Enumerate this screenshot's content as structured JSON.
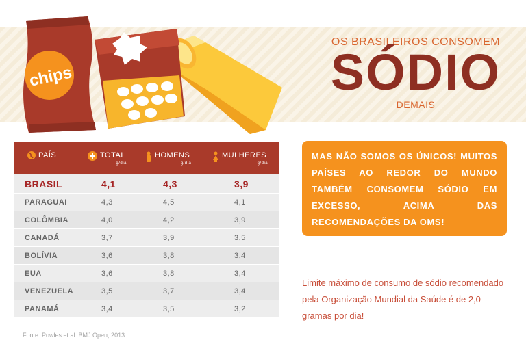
{
  "hero": {
    "top_line": "OS BRASILEIROS CONSOMEM",
    "big_word": "SÓDIO",
    "bottom_line": "DEMAIS"
  },
  "illustration": {
    "bag_label": "chips",
    "icons": [
      "chips-bag-icon",
      "cracker-box-icon",
      "cheese-stick-icon"
    ],
    "colors": {
      "bag": "#a93a2a",
      "box": "#a93a2a",
      "stick": "#f7b731",
      "label_circle": "#f5921e"
    }
  },
  "table": {
    "headers": {
      "pais": "PAÍS",
      "total": "TOTAL",
      "homens": "HOMENS",
      "mulheres": "MULHERES",
      "unit": "g/dia"
    },
    "rows": [
      {
        "name": "BRASIL",
        "total": "4,1",
        "homens": "4,3",
        "mulheres": "3,9"
      },
      {
        "name": "PARAGUAI",
        "total": "4,3",
        "homens": "4,5",
        "mulheres": "4,1"
      },
      {
        "name": "COLÔMBIA",
        "total": "4,0",
        "homens": "4,2",
        "mulheres": "3,9"
      },
      {
        "name": "CANADÁ",
        "total": "3,7",
        "homens": "3,9",
        "mulheres": "3,5"
      },
      {
        "name": "BOLÍVIA",
        "total": "3,6",
        "homens": "3,8",
        "mulheres": "3,4"
      },
      {
        "name": "EUA",
        "total": "3,6",
        "homens": "3,8",
        "mulheres": "3,4"
      },
      {
        "name": "VENEZUELA",
        "total": "3,5",
        "homens": "3,7",
        "mulheres": "3,4"
      },
      {
        "name": "PANAMÁ",
        "total": "3,4",
        "homens": "3,5",
        "mulheres": "3,2"
      }
    ]
  },
  "source": "Fonte: Powles et al. BMJ Open, 2013.",
  "callout": "MAS NÃO SOMOS OS ÚNICOS! MUITOS PAÍSES AO REDOR DO MUNDO TAMBÉM CONSOMEM SÓDIO EM EXCESSO, ACIMA DAS RECOMENDAÇÕES DA OMS!",
  "note": "Limite máximo de consumo de sódio recomendado pela Organização Mundial da Saúde é de 2,0 gramas por dia!",
  "colors": {
    "accent_red": "#a93a2a",
    "dark_red": "#8e2f22",
    "orange": "#f5921e",
    "text_orange": "#d9662f"
  }
}
